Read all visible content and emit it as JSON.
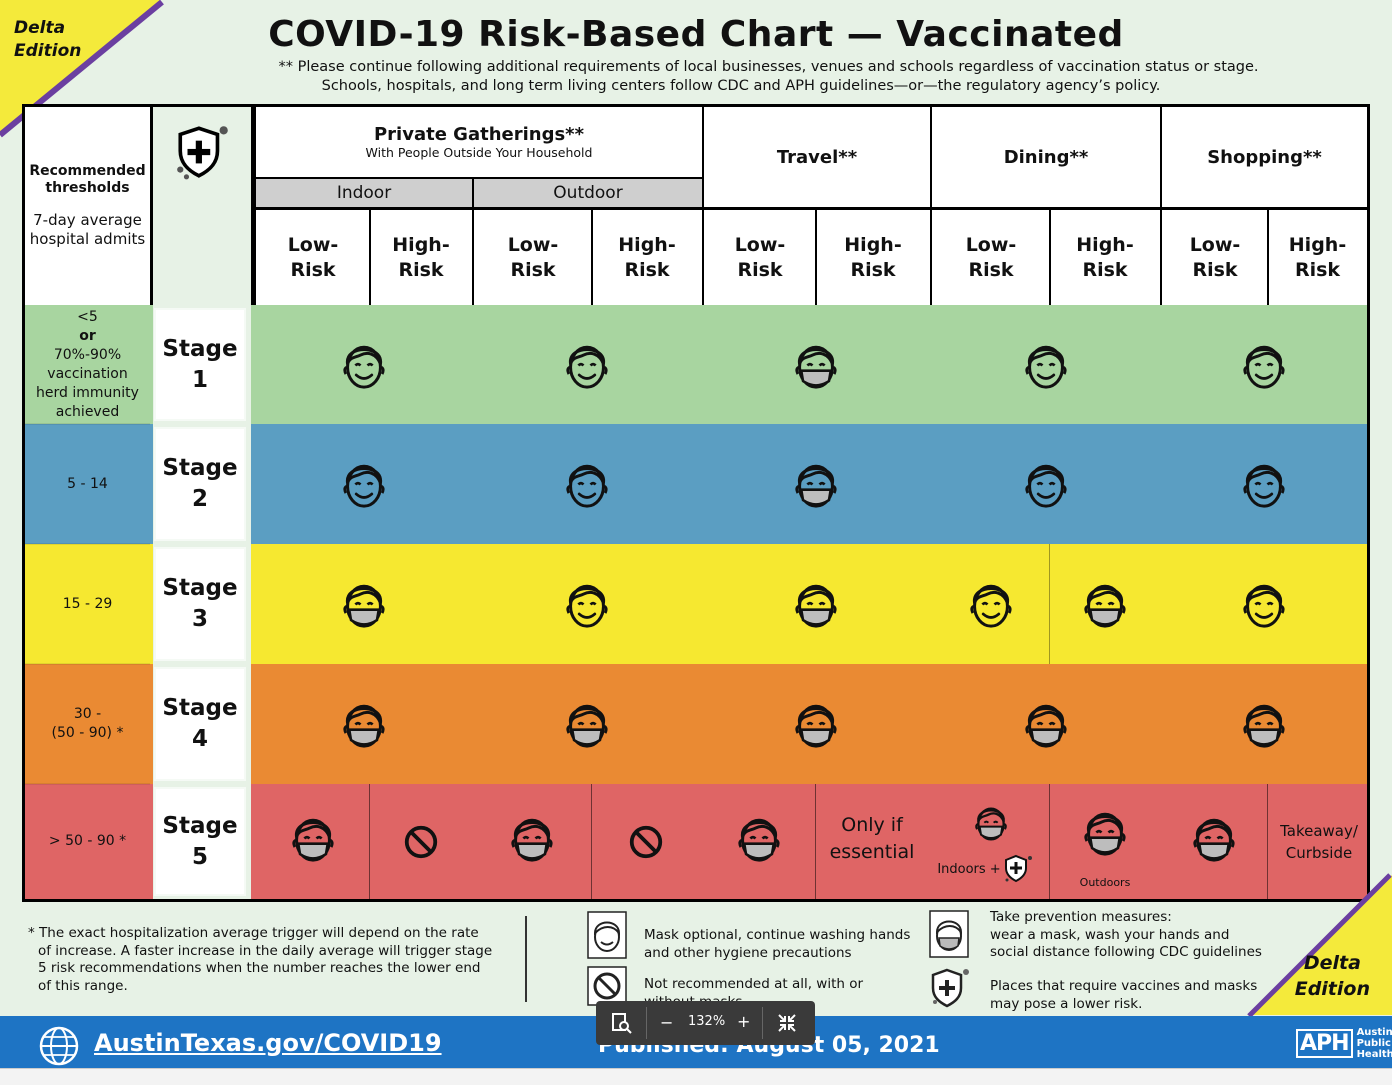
{
  "badge_top": [
    "Delta",
    "Edition"
  ],
  "badge_bottom": [
    "Delta",
    "Edition"
  ],
  "title": "COVID-19 Risk-Based Chart — Vaccinated",
  "note_lines": [
    "** Please continue following additional requirements of local businesses, venues and schools regardless of vaccination status or stage.",
    "Schools, hospitals, and long term living centers follow CDC and APH guidelines—or—the regulatory agency’s policy."
  ],
  "threshold_header": {
    "bold": [
      "Recommended",
      "thresholds"
    ],
    "normal": [
      "7-day average",
      "hospital admits"
    ]
  },
  "columns": {
    "private": {
      "title": "Private Gatherings**",
      "subtitle": "With People Outside Your Household",
      "indoor": "Indoor",
      "outdoor": "Outdoor"
    },
    "travel": "Travel**",
    "dining": "Dining**",
    "shopping": "Shopping**",
    "low": [
      "Low-",
      "Risk"
    ],
    "high": [
      "High-",
      "Risk"
    ]
  },
  "stages": [
    {
      "label": [
        "Stage",
        "1"
      ],
      "threshold": [
        "<5",
        "or",
        "70%-90%",
        "vaccination",
        "herd immunity",
        "achieved"
      ],
      "color": "#a8d5a0"
    },
    {
      "label": [
        "Stage",
        "2"
      ],
      "threshold": [
        "5 - 14"
      ],
      "color": "#5b9ec2"
    },
    {
      "label": [
        "Stage",
        "3"
      ],
      "threshold": [
        "15 - 29"
      ],
      "color": "#f6e830"
    },
    {
      "label": [
        "Stage",
        "4"
      ],
      "threshold": [
        "30 -",
        "(50 - 90) *"
      ],
      "color": "#ea8a33"
    },
    {
      "label": [
        "Stage",
        "5"
      ],
      "threshold": [
        "> 50 - 90 *"
      ],
      "color": "#df6565"
    }
  ],
  "stage5_text": {
    "travel_high": [
      "Only if",
      "essential"
    ],
    "dining_low": "Indoors +",
    "dining_high": "Outdoors",
    "shopping_high": [
      "Takeaway/",
      "Curbside"
    ]
  },
  "footnote": "* The exact hospitalization average trigger will depend on the rate of increase. A faster increase in the daily average will trigger stage 5 risk recommendations when the number reaches the lower end of this range.",
  "legend": {
    "mask_optional": [
      "Mask optional, continue washing hands",
      "and other hygiene precautions"
    ],
    "not_recommended": [
      "Not recommended at all, with or",
      "without masks"
    ],
    "prevention": [
      "Take prevention measures:",
      "wear a mask, wash your hands and",
      "social distance following CDC guidelines"
    ],
    "vaccine_places": [
      "Places that require vaccines and masks",
      "may pose a lower risk."
    ]
  },
  "footer": {
    "url": "AustinTexas.gov/COVID19",
    "published": "Published: August 05, 2021",
    "aph": [
      "Austin",
      "Public",
      "Health"
    ],
    "aph_logo": "APH"
  },
  "zoom": {
    "level": "132%",
    "minus": "−",
    "plus": "+"
  }
}
